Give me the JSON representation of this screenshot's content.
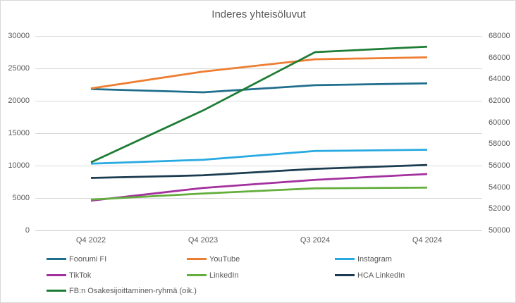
{
  "title": "Inderes yhteisöluvut",
  "chart_data": {
    "type": "line",
    "title": "Inderes yhteisöluvut",
    "categories": [
      "Q4 2022",
      "Q4 2023",
      "Q3 2024",
      "Q4 2024"
    ],
    "series": [
      {
        "name": "Foorumi FI",
        "color": "#1F6E8C",
        "axis": "left",
        "values": [
          21800,
          21300,
          22400,
          22700
        ]
      },
      {
        "name": "YouTube",
        "color": "#ED7D31",
        "axis": "left",
        "values": [
          21900,
          24500,
          26400,
          26700
        ]
      },
      {
        "name": "Instagram",
        "color": "#27A9E1",
        "axis": "left",
        "values": [
          10300,
          10900,
          12250,
          12450
        ]
      },
      {
        "name": "TikTok",
        "color": "#A3309E",
        "axis": "left",
        "values": [
          4600,
          6550,
          7800,
          8700
        ]
      },
      {
        "name": "LinkedIn",
        "color": "#63AE3C",
        "axis": "left",
        "values": [
          4750,
          5700,
          6500,
          6600
        ]
      },
      {
        "name": "HCA LinkedIn",
        "color": "#1B3B50",
        "axis": "left",
        "values": [
          8100,
          8500,
          9500,
          10100
        ]
      },
      {
        "name": "FB:n Osakesijoittaminen-ryhmä (oik.)",
        "color": "#1E7C34",
        "axis": "right",
        "values": [
          56300,
          61100,
          66500,
          67000
        ]
      }
    ],
    "left_axis": {
      "min": 0,
      "max": 30000,
      "step": 5000,
      "ticks": [
        0,
        5000,
        10000,
        15000,
        20000,
        25000,
        30000
      ]
    },
    "right_axis": {
      "min": 50000,
      "max": 68000,
      "step": 2000,
      "ticks": [
        50000,
        52000,
        54000,
        56000,
        58000,
        60000,
        62000,
        64000,
        66000,
        68000
      ]
    },
    "grid": true,
    "legend_position": "bottom",
    "grid_color": "#d9d9d9",
    "axis_line_color": "#c9c9c9",
    "text_color": "#595959"
  }
}
